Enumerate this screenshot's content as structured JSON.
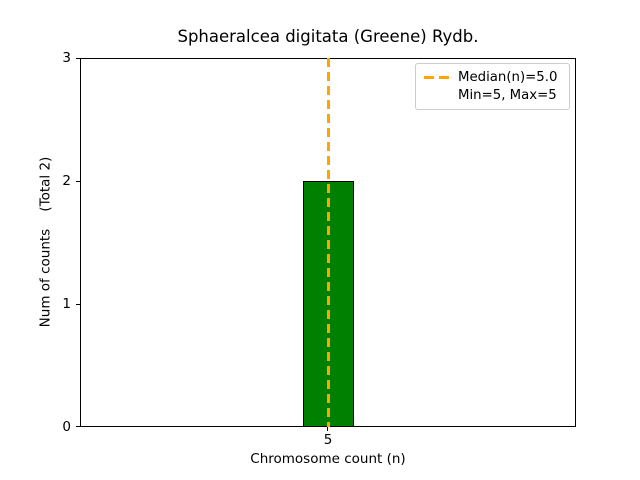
{
  "chart_data": {
    "type": "bar",
    "title": "Sphaeralcea digitata (Greene) Rydb.",
    "xlabel": "Chromosome count (n)",
    "ylabel": "Num of counts    (Total 2)",
    "total_counts": 2,
    "categories": [
      "5"
    ],
    "values": [
      2
    ],
    "ylim": [
      0,
      3
    ],
    "yticks": [
      "0",
      "1",
      "2",
      "3"
    ],
    "xticks": [
      "5"
    ],
    "grid": false,
    "bar": {
      "x": 5,
      "height": 2,
      "color": "#008000",
      "edge_color": "#000000"
    },
    "median_line": {
      "x": 5.0,
      "style": "dashed",
      "color": "#ffa500",
      "label": "Median(n)=5.0"
    },
    "legend": {
      "position": "upper right",
      "entries": [
        {
          "label": "Median(n)=5.0",
          "swatch": "orange-dashed-line"
        },
        {
          "label": "Min=5, Max=5",
          "swatch": "none"
        }
      ]
    }
  }
}
